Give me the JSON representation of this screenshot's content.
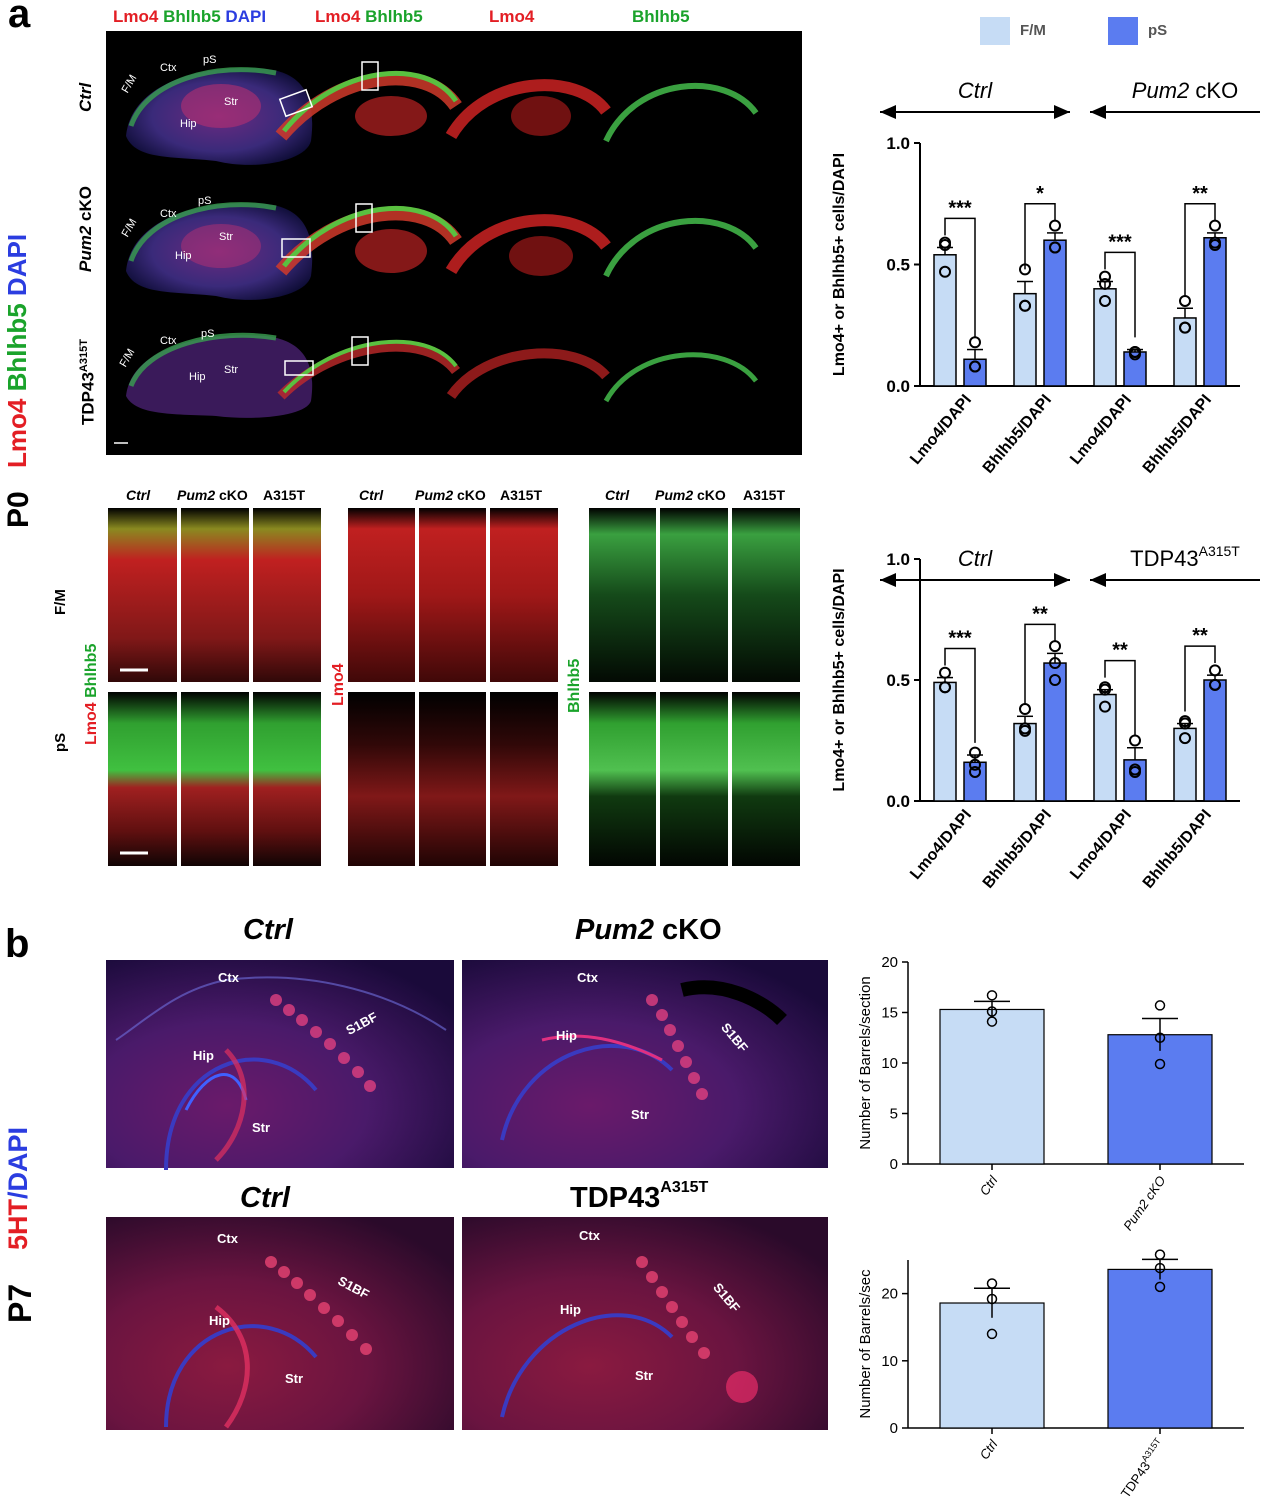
{
  "panel_a": {
    "letter": "a",
    "age": "P0",
    "stain_label": {
      "lmo4": "Lmo4",
      "bhlhb5": "Bhlhb5",
      "dapi": "DAPI"
    },
    "top_headers": [
      "Lmo4 Bhlhb5 DAPI",
      "Lmo4 Bhlhb5",
      "Lmo4",
      "Bhlhb5"
    ],
    "header_parts": {
      "lmo4": "Lmo4",
      "bhlhb5": "Bhlhb5",
      "dapi": "DAPI"
    },
    "row_labels": {
      "ctrl": "Ctrl",
      "pum2": "Pum2",
      "cko": "cKO",
      "tdp": "TDP43",
      "tdp_sup": "A315T"
    },
    "region_labels": {
      "fm": "F/M",
      "ctx": "Ctx",
      "ps": "pS",
      "str": "Str",
      "hip": "Hip"
    },
    "zoom_headers": {
      "ctrl": "Ctrl",
      "pum2": "Pum2",
      "cko": "cKO",
      "a315t": "A315T"
    },
    "zoom_side": {
      "fm": "F/M",
      "ps": "pS",
      "lmo4": "Lmo4",
      "bhlhb5": "Bhlhb5"
    },
    "legend": [
      {
        "name": "F/M",
        "color": "#c6dcf5"
      },
      {
        "name": "pS",
        "color": "#5b7cf0"
      }
    ]
  },
  "panel_b": {
    "letter": "b",
    "age": "P7",
    "stain_label": {
      "ht": "5HT",
      "sep": "/",
      "dapi": "DAPI"
    },
    "headers": {
      "ctrl": "Ctrl",
      "pum2": "Pum2",
      "cko": "cKO",
      "tdp": "TDP43",
      "tdp_sup": "A315T"
    },
    "region_labels": {
      "ctx": "Ctx",
      "s1bf": "S1BF",
      "hip": "Hip",
      "str": "Str"
    }
  },
  "chart_data": [
    {
      "type": "bar",
      "ylabel": "Lmo4+ or Bhlhb5+ cells/DAPI",
      "ylim": [
        0,
        1.0
      ],
      "yticks": [
        "0.0",
        "0.5",
        "1.0"
      ],
      "groups": [
        {
          "label": "Ctrl",
          "italic": true
        },
        {
          "label": "Pum2 cKO",
          "italic": true
        }
      ],
      "categories": [
        "Lmo4/DAPI",
        "Bhlhb5/DAPI",
        "Lmo4/DAPI",
        "Bhlhb5/DAPI"
      ],
      "series": [
        {
          "name": "F/M",
          "values": [
            0.54,
            0.38,
            0.4,
            0.28
          ],
          "errors": [
            0.03,
            0.05,
            0.03,
            0.04
          ],
          "points": [
            [
              0.58,
              0.59,
              0.47
            ],
            [
              0.48,
              0.33,
              0.33
            ],
            [
              0.45,
              0.42,
              0.35
            ],
            [
              0.35,
              0.24,
              0.24
            ]
          ]
        },
        {
          "name": "pS",
          "values": [
            0.11,
            0.6,
            0.14,
            0.61
          ],
          "errors": [
            0.04,
            0.03,
            0.01,
            0.02
          ],
          "points": [
            [
              0.18,
              0.08,
              0.08
            ],
            [
              0.66,
              0.57,
              0.57
            ],
            [
              0.14,
              0.13,
              0.14
            ],
            [
              0.66,
              0.58,
              0.59
            ]
          ]
        }
      ],
      "significance": [
        "***",
        "*",
        "***",
        "**"
      ]
    },
    {
      "type": "bar",
      "ylabel": "Lmo4+ or Bhlhb5+ cells/DAPI",
      "ylim": [
        0,
        1.0
      ],
      "yticks": [
        "0.0",
        "0.5",
        "1.0"
      ],
      "groups": [
        {
          "label": "Ctrl",
          "italic": true
        },
        {
          "label": "TDP43",
          "sup": "A315T",
          "italic": false
        }
      ],
      "categories": [
        "Lmo4/DAPI",
        "Bhlhb5/DAPI",
        "Lmo4/DAPI",
        "Bhlhb5/DAPI"
      ],
      "series": [
        {
          "name": "F/M",
          "values": [
            0.49,
            0.32,
            0.44,
            0.3
          ],
          "errors": [
            0.02,
            0.03,
            0.02,
            0.02
          ],
          "points": [
            [
              0.53,
              0.47,
              0.47
            ],
            [
              0.38,
              0.3,
              0.29
            ],
            [
              0.47,
              0.46,
              0.39
            ],
            [
              0.33,
              0.32,
              0.26
            ]
          ]
        },
        {
          "name": "pS",
          "values": [
            0.16,
            0.57,
            0.17,
            0.5
          ],
          "errors": [
            0.03,
            0.04,
            0.05,
            0.02
          ],
          "points": [
            [
              0.2,
              0.15,
              0.12
            ],
            [
              0.64,
              0.57,
              0.5
            ],
            [
              0.25,
              0.13,
              0.12
            ],
            [
              0.54,
              0.48,
              0.48
            ]
          ]
        }
      ],
      "significance": [
        "***",
        "**",
        "**",
        "**"
      ]
    },
    {
      "type": "bar",
      "ylabel": "Number of Barrels/section",
      "ylim": [
        0,
        20
      ],
      "yticks": [
        "0",
        "5",
        "10",
        "15",
        "20"
      ],
      "categories": [
        {
          "label": "Ctrl",
          "italic": true
        },
        {
          "label": "Pum2 cKO",
          "italic": true
        }
      ],
      "series": [
        {
          "name": "",
          "values": [
            15.3,
            12.8
          ],
          "errors": [
            0.8,
            1.6
          ],
          "points": [
            [
              16.7,
              15.1,
              14.1
            ],
            [
              15.7,
              12.5,
              9.9
            ]
          ]
        }
      ]
    },
    {
      "type": "bar",
      "ylabel": "Number of Barrels/sec",
      "ylim": [
        0,
        25
      ],
      "yticks": [
        "0",
        "10",
        "20"
      ],
      "categories": [
        {
          "label": "Ctrl",
          "italic": true
        },
        {
          "label": "TDP43",
          "sup": "A315T",
          "italic": false
        }
      ],
      "series": [
        {
          "name": "",
          "values": [
            18.6,
            23.6
          ],
          "errors": [
            2.2,
            1.5
          ],
          "points": [
            [
              21.5,
              19.2,
              14.0
            ],
            [
              25.8,
              23.8,
              21.0
            ]
          ]
        }
      ]
    }
  ]
}
